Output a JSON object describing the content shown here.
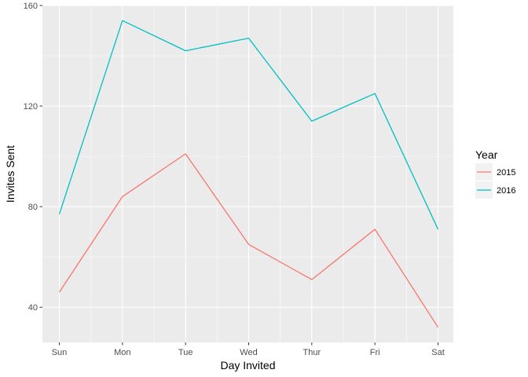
{
  "chart_data": {
    "type": "line",
    "xlabel": "Day Invited",
    "ylabel": "Invites Sent",
    "categories": [
      "Sun",
      "Mon",
      "Tue",
      "Wed",
      "Thur",
      "Fri",
      "Sat"
    ],
    "ylim": [
      26,
      160
    ],
    "yticks": [
      40,
      80,
      120,
      160
    ],
    "yticks_minor": [
      60,
      100,
      140
    ],
    "grid": true,
    "legend": {
      "title": "Year",
      "position": "right"
    },
    "series": [
      {
        "name": "2015",
        "color": "#F8766D",
        "values": [
          46,
          84,
          101,
          65,
          51,
          71,
          32
        ]
      },
      {
        "name": "2016",
        "color": "#00BFC4",
        "values": [
          77,
          154,
          142,
          147,
          114,
          125,
          71
        ]
      }
    ],
    "panel_background": "#EBEBEB",
    "grid_color": "#FFFFFF"
  }
}
